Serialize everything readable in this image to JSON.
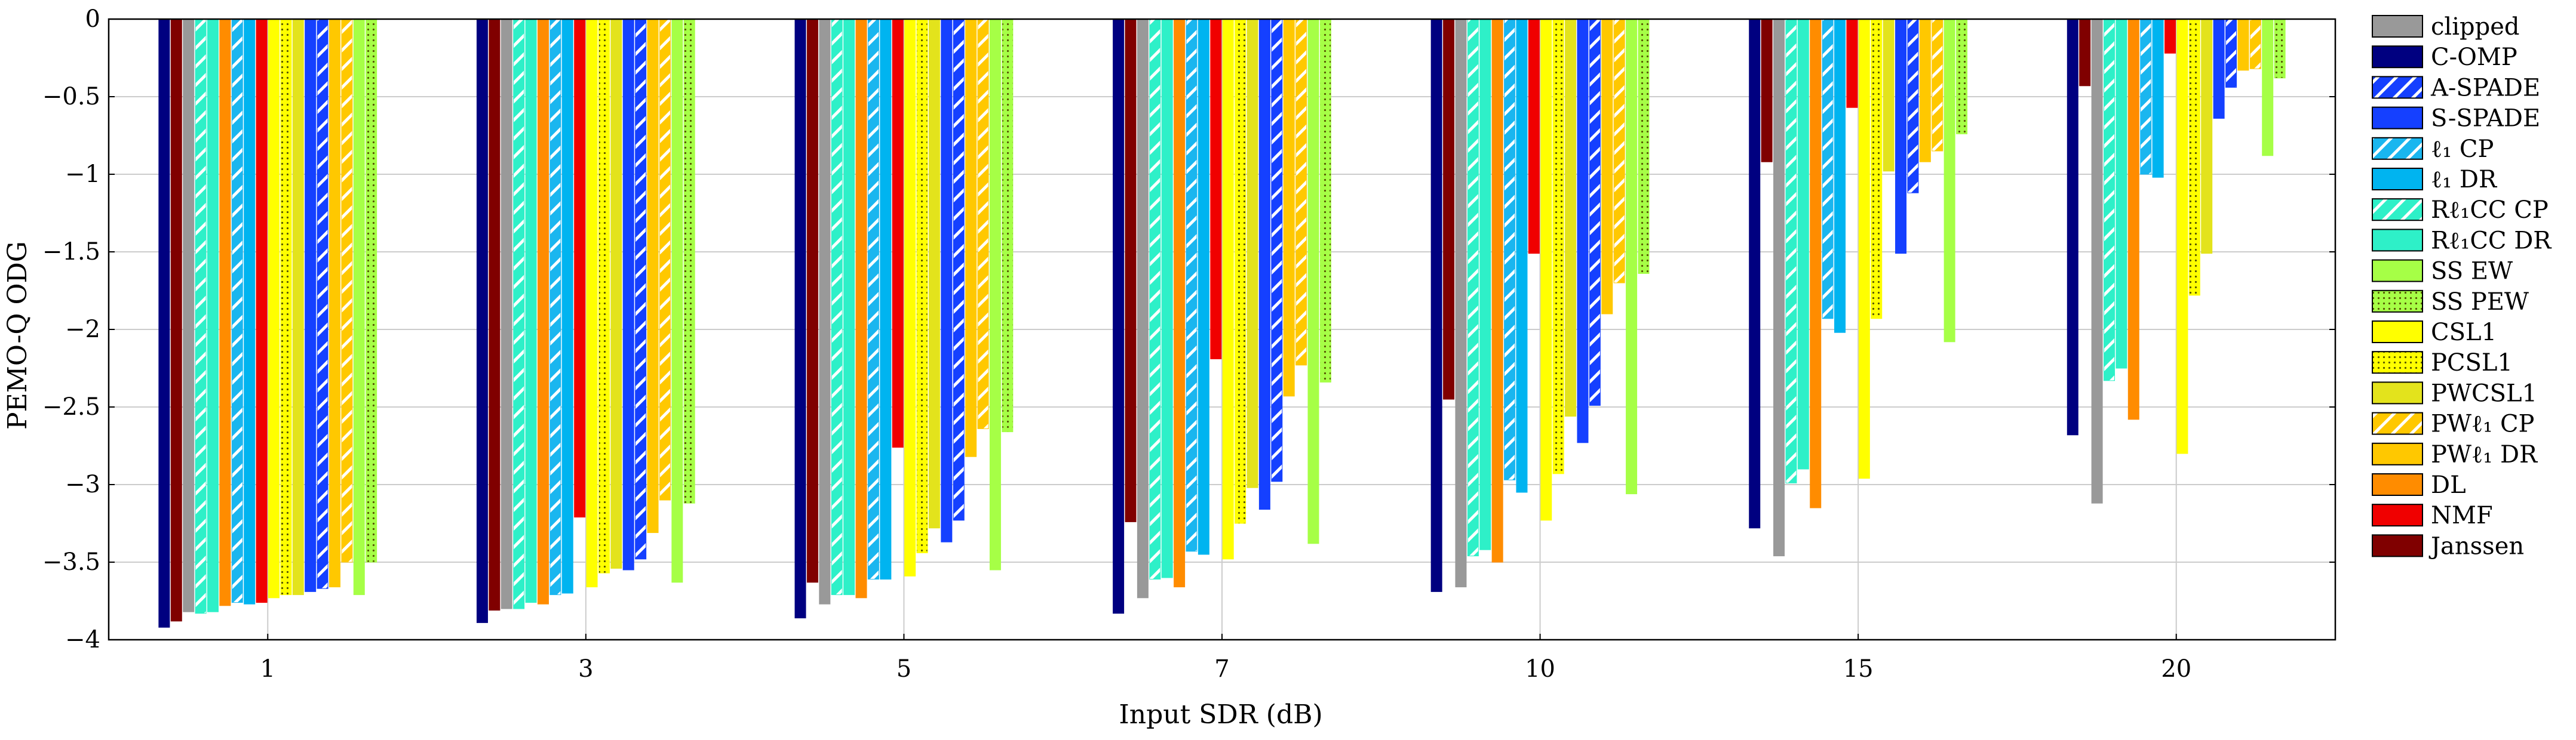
{
  "chart_data": {
    "type": "bar",
    "title": "",
    "xlabel": "Input SDR (dB)",
    "ylabel": "PEMO-Q ODG",
    "categories": [
      "1",
      "3",
      "5",
      "7",
      "10",
      "15",
      "20"
    ],
    "ylim": [
      -4,
      0
    ],
    "yticks": [
      0,
      -0.5,
      -1,
      -1.5,
      -2,
      -2.5,
      -3,
      -3.5,
      -4
    ],
    "ytick_labels": [
      "0",
      "−0.5",
      "−1",
      "−1.5",
      "−2",
      "−2.5",
      "−3",
      "−3.5",
      "−4"
    ],
    "grid": true,
    "legend_position": "right",
    "series": [
      {
        "name": "clipped",
        "color": "#999999",
        "pattern": "none",
        "values": [
          -3.82,
          -3.8,
          -3.77,
          -3.73,
          -3.66,
          -3.46,
          -3.12
        ]
      },
      {
        "name": "C-OMP",
        "color": "#000080",
        "pattern": "none",
        "values": [
          -3.92,
          -3.89,
          -3.86,
          -3.83,
          -3.69,
          -3.28,
          -2.68
        ]
      },
      {
        "name": "A-SPADE",
        "color": "#1540ff",
        "pattern": "hatch",
        "values": [
          -3.67,
          -3.48,
          -3.23,
          -2.98,
          -2.49,
          -1.12,
          -0.44
        ]
      },
      {
        "name": "S-SPADE",
        "color": "#1540ff",
        "pattern": "none",
        "values": [
          -3.69,
          -3.55,
          -3.37,
          -3.16,
          -2.73,
          -1.51,
          -0.64
        ]
      },
      {
        "name": "ℓ₁ CP",
        "color": "#1ab6ef",
        "pattern": "hatch",
        "values": [
          -3.76,
          -3.71,
          -3.61,
          -3.43,
          -2.97,
          -1.93,
          -1.0
        ]
      },
      {
        "name": "ℓ₁ DR",
        "color": "#00b4f0",
        "pattern": "none",
        "values": [
          -3.77,
          -3.7,
          -3.61,
          -3.45,
          -3.05,
          -2.02,
          -1.02
        ]
      },
      {
        "name": "Rℓ₁CC CP",
        "color": "#2ef0c8",
        "pattern": "hatch",
        "values": [
          -3.83,
          -3.8,
          -3.71,
          -3.61,
          -3.46,
          -2.99,
          -2.33
        ]
      },
      {
        "name": "Rℓ₁CC DR",
        "color": "#2ef0c8",
        "pattern": "none",
        "values": [
          -3.82,
          -3.76,
          -3.71,
          -3.6,
          -3.42,
          -2.9,
          -2.25
        ]
      },
      {
        "name": "SS EW",
        "color": "#a6ff46",
        "pattern": "none",
        "values": [
          -3.71,
          -3.63,
          -3.55,
          -3.38,
          -3.06,
          -2.08,
          -0.88
        ]
      },
      {
        "name": "SS PEW",
        "color": "#a6ff46",
        "pattern": "dots",
        "values": [
          -3.5,
          -3.12,
          -2.66,
          -2.34,
          -1.64,
          -0.74,
          -0.38
        ]
      },
      {
        "name": "CSL1",
        "color": "#ffff00",
        "pattern": "none",
        "values": [
          -3.73,
          -3.66,
          -3.59,
          -3.48,
          -3.23,
          -2.96,
          -2.8
        ]
      },
      {
        "name": "PCSL1",
        "color": "#ffff00",
        "pattern": "dots",
        "values": [
          -3.71,
          -3.57,
          -3.44,
          -3.25,
          -2.93,
          -1.93,
          -1.78
        ]
      },
      {
        "name": "PWCSL1",
        "color": "#e3e31c",
        "pattern": "none",
        "values": [
          -3.71,
          -3.54,
          -3.28,
          -3.02,
          -2.56,
          -0.98,
          -1.51
        ]
      },
      {
        "name": "PWℓ₁ CP",
        "color": "#ffc800",
        "pattern": "hatch",
        "values": [
          -3.5,
          -3.1,
          -2.64,
          -2.23,
          -1.7,
          -0.85,
          -0.32
        ]
      },
      {
        "name": "PWℓ₁ DR",
        "color": "#ffc800",
        "pattern": "none",
        "values": [
          -3.66,
          -3.31,
          -2.82,
          -2.43,
          -1.9,
          -0.92,
          -0.33
        ]
      },
      {
        "name": "DL",
        "color": "#ff8c00",
        "pattern": "none",
        "values": [
          -3.78,
          -3.77,
          -3.73,
          -3.66,
          -3.5,
          -3.15,
          -2.58
        ]
      },
      {
        "name": "NMF",
        "color": "#f00000",
        "pattern": "none",
        "values": [
          -3.76,
          -3.21,
          -2.76,
          -2.19,
          -1.51,
          -0.57,
          -0.22
        ]
      },
      {
        "name": "Janssen",
        "color": "#800000",
        "pattern": "none",
        "values": [
          -3.88,
          -3.81,
          -3.63,
          -3.24,
          -2.45,
          -0.92,
          -0.43
        ]
      }
    ],
    "bar_order": [
      "C-OMP",
      "Janssen",
      "clipped",
      "Rℓ₁CC CP",
      "Rℓ₁CC DR",
      "DL",
      "ℓ₁ CP",
      "ℓ₁ DR",
      "NMF",
      "CSL1",
      "PCSL1",
      "PWCSL1",
      "S-SPADE",
      "A-SPADE",
      "PWℓ₁ DR",
      "PWℓ₁ CP",
      "SS EW",
      "SS PEW"
    ]
  }
}
